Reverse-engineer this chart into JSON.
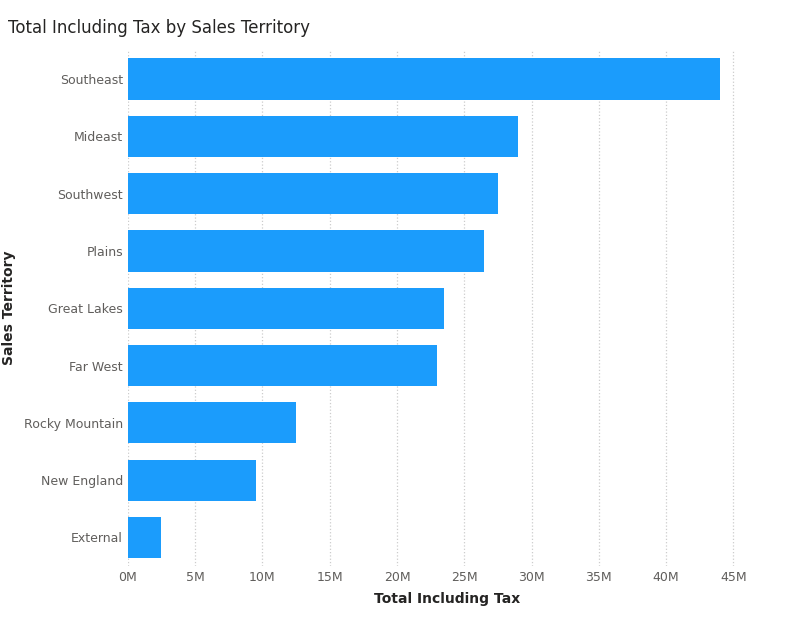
{
  "title": "Total Including Tax by Sales Territory",
  "categories": [
    "Southeast",
    "Mideast",
    "Southwest",
    "Plains",
    "Great Lakes",
    "Far West",
    "Rocky Mountain",
    "New England",
    "External"
  ],
  "values": [
    44000000,
    29000000,
    27500000,
    26500000,
    23500000,
    23000000,
    12500000,
    9500000,
    2500000
  ],
  "bar_color": "#1B9CFC",
  "xlabel": "Total Including Tax",
  "ylabel": "Sales Territory",
  "xlim": [
    0,
    47500000
  ],
  "xtick_step": 5000000,
  "background_color": "#ffffff",
  "title_fontsize": 12,
  "axis_label_fontsize": 10,
  "tick_fontsize": 9,
  "grid_color": "#cccccc",
  "bar_height": 0.72,
  "title_color": "#252423",
  "tick_color": "#605E5C",
  "label_color": "#252423"
}
